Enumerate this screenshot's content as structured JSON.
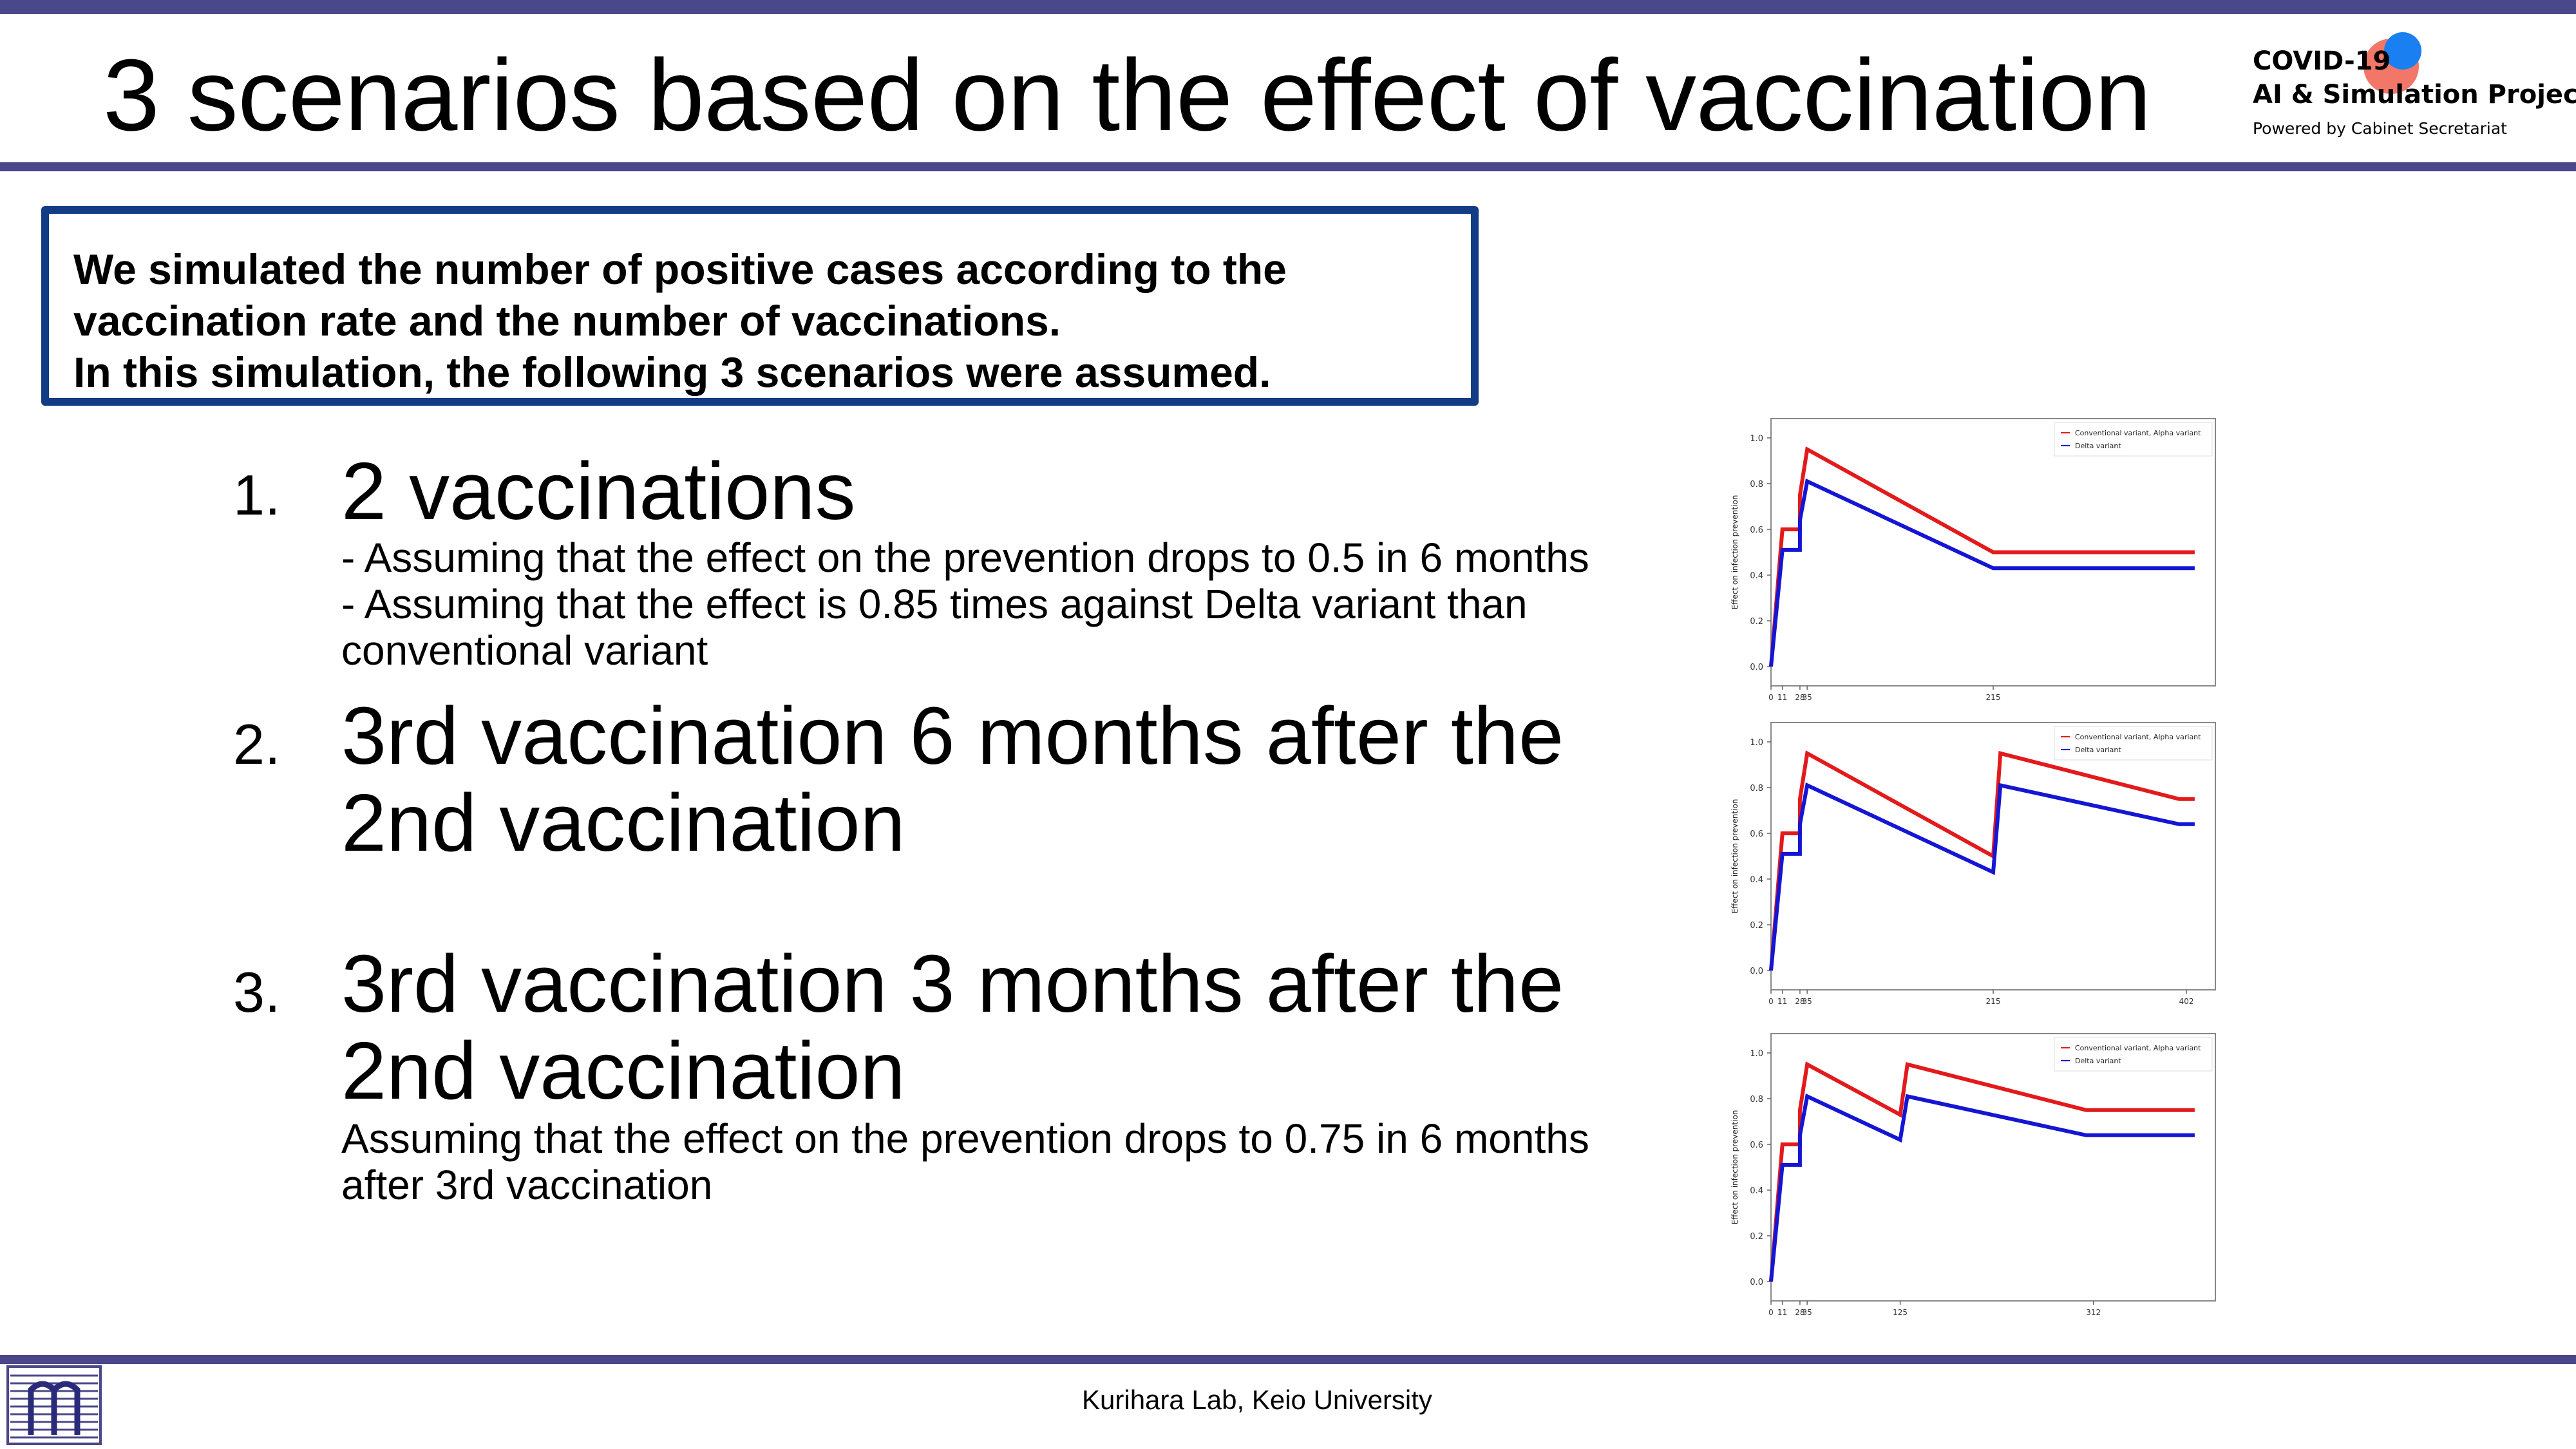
{
  "header": {
    "title": "3 scenarios based on the effect of vaccination",
    "logo_line1": "COVID-19",
    "logo_line2": "AI & Simulation Project",
    "logo_line3": "Powered by Cabinet Secretariat"
  },
  "infobox": {
    "line1": "We simulated the number of positive cases according to the",
    "line2": "vaccination rate and the number of vaccinations.",
    "line3": "In this simulation, the following 3 scenarios were assumed."
  },
  "scenarios": [
    {
      "num": "1.",
      "head": [
        "2 vaccinations"
      ],
      "sub": [
        "- Assuming that the effect on the prevention drops to 0.5 in 6 months",
        "- Assuming that the effect is 0.85 times against Delta variant than",
        "conventional variant"
      ]
    },
    {
      "num": "2.",
      "head": [
        "3rd vaccination 6 months after the",
        "2nd vaccination"
      ],
      "sub": []
    },
    {
      "num": "3.",
      "head": [
        "3rd vaccination 3 months after the",
        "2nd vaccination"
      ],
      "sub": [
        "Assuming that the effect on the prevention drops to 0.75 in 6 months",
        "after 3rd vaccination"
      ]
    }
  ],
  "footer": {
    "text": "Kurihara Lab, Keio University"
  },
  "colors": {
    "accent_bar": "#4a478a",
    "box_border": "#123c85",
    "conventional": "#e31a1c",
    "delta": "#1515d4"
  },
  "chart_data": [
    {
      "type": "line",
      "title": "",
      "xlabel": "",
      "ylabel": "Effect on infection prevention",
      "ylim": [
        0.0,
        1.0
      ],
      "xlim": [
        0,
        430
      ],
      "yticks": [
        "0.0",
        "0.2",
        "0.4",
        "0.6",
        "0.8",
        "1.0"
      ],
      "xticks": [
        {
          "value": 0,
          "label": "0"
        },
        {
          "value": 11,
          "label": "11"
        },
        {
          "value": 28,
          "label": "28"
        },
        {
          "value": 35,
          "label": "35"
        },
        {
          "value": 215,
          "label": "215"
        }
      ],
      "legend_position": "top-right",
      "grid": false,
      "series": [
        {
          "name": "Conventional variant, Alpha variant",
          "color": "#e31a1c",
          "x": [
            0,
            11,
            11,
            28,
            28,
            35,
            215,
            410
          ],
          "y": [
            0.0,
            0.6,
            0.6,
            0.6,
            0.75,
            0.95,
            0.5,
            0.5
          ]
        },
        {
          "name": "Delta variant",
          "color": "#1515d4",
          "x": [
            0,
            11,
            11,
            28,
            28,
            35,
            215,
            410
          ],
          "y": [
            0.0,
            0.51,
            0.51,
            0.51,
            0.64,
            0.81,
            0.43,
            0.43
          ]
        }
      ]
    },
    {
      "type": "line",
      "title": "",
      "xlabel": "",
      "ylabel": "Effect on infection prevention",
      "ylim": [
        0.0,
        1.0
      ],
      "xlim": [
        0,
        430
      ],
      "yticks": [
        "0.0",
        "0.2",
        "0.4",
        "0.6",
        "0.8",
        "1.0"
      ],
      "xticks": [
        {
          "value": 0,
          "label": "0"
        },
        {
          "value": 11,
          "label": "11"
        },
        {
          "value": 28,
          "label": "28"
        },
        {
          "value": 35,
          "label": "35"
        },
        {
          "value": 215,
          "label": "215"
        },
        {
          "value": 402,
          "label": "402"
        }
      ],
      "legend_position": "top-right",
      "grid": false,
      "series": [
        {
          "name": "Conventional variant, Alpha variant",
          "color": "#e31a1c",
          "x": [
            0,
            11,
            11,
            28,
            28,
            35,
            215,
            222,
            395,
            410
          ],
          "y": [
            0.0,
            0.6,
            0.6,
            0.6,
            0.75,
            0.95,
            0.5,
            0.95,
            0.75,
            0.75
          ]
        },
        {
          "name": "Delta variant",
          "color": "#1515d4",
          "x": [
            0,
            11,
            11,
            28,
            28,
            35,
            215,
            222,
            395,
            410
          ],
          "y": [
            0.0,
            0.51,
            0.51,
            0.51,
            0.64,
            0.81,
            0.43,
            0.81,
            0.64,
            0.64
          ]
        }
      ]
    },
    {
      "type": "line",
      "title": "",
      "xlabel": "",
      "ylabel": "Effect on infection prevention",
      "ylim": [
        0.0,
        1.0
      ],
      "xlim": [
        0,
        430
      ],
      "yticks": [
        "0.0",
        "0.2",
        "0.4",
        "0.6",
        "0.8",
        "1.0"
      ],
      "xticks": [
        {
          "value": 0,
          "label": "0"
        },
        {
          "value": 11,
          "label": "11"
        },
        {
          "value": 28,
          "label": "28"
        },
        {
          "value": 35,
          "label": "35"
        },
        {
          "value": 125,
          "label": "125"
        },
        {
          "value": 312,
          "label": "312"
        }
      ],
      "legend_position": "top-right",
      "grid": false,
      "series": [
        {
          "name": "Conventional variant, Alpha variant",
          "color": "#e31a1c",
          "x": [
            0,
            11,
            11,
            28,
            28,
            35,
            125,
            132,
            305,
            410
          ],
          "y": [
            0.0,
            0.6,
            0.6,
            0.6,
            0.75,
            0.95,
            0.73,
            0.95,
            0.75,
            0.75
          ]
        },
        {
          "name": "Delta variant",
          "color": "#1515d4",
          "x": [
            0,
            11,
            11,
            28,
            28,
            35,
            125,
            132,
            305,
            410
          ],
          "y": [
            0.0,
            0.51,
            0.51,
            0.51,
            0.64,
            0.81,
            0.62,
            0.81,
            0.64,
            0.64
          ]
        }
      ]
    }
  ]
}
